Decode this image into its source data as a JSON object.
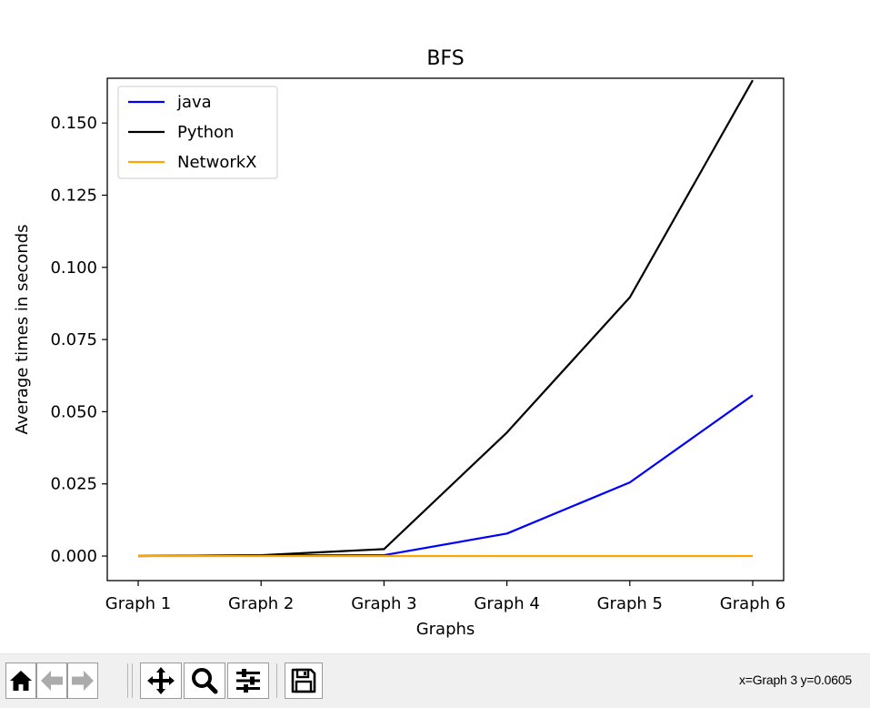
{
  "chart_data": {
    "type": "line",
    "title": "BFS",
    "xlabel": "Graphs",
    "ylabel": "Average times in seconds",
    "categories": [
      "Graph 1",
      "Graph 2",
      "Graph 3",
      "Graph 4",
      "Graph 5",
      "Graph 6"
    ],
    "yticks": [
      "0.000",
      "0.025",
      "0.050",
      "0.075",
      "0.100",
      "0.125",
      "0.150"
    ],
    "ylim": [
      -0.0085,
      0.1655
    ],
    "grid": false,
    "legend_position": "upper-left",
    "series": [
      {
        "name": "java",
        "color": "#0000ff",
        "values": [
          0.0,
          0.0003,
          0.0003,
          0.0078,
          0.0255,
          0.0557
        ]
      },
      {
        "name": "Python",
        "color": "#000000",
        "values": [
          0.0,
          0.0003,
          0.0024,
          0.0428,
          0.0896,
          0.1648
        ]
      },
      {
        "name": "NetworkX",
        "color": "#ffa500",
        "values": [
          0.0,
          0.0,
          0.0,
          0.0,
          0.0,
          0.0
        ]
      }
    ]
  },
  "toolbar": {
    "buttons": [
      {
        "name": "home-button",
        "icon": "home-icon"
      },
      {
        "name": "back-button",
        "icon": "back-arrow-icon"
      },
      {
        "name": "forward-button",
        "icon": "forward-arrow-icon"
      },
      {
        "name": "pan-button",
        "icon": "move-icon"
      },
      {
        "name": "zoom-button",
        "icon": "magnifier-icon"
      },
      {
        "name": "configure-subplots-button",
        "icon": "sliders-icon"
      },
      {
        "name": "save-button",
        "icon": "floppy-disk-icon"
      }
    ],
    "coordinates": "x=Graph 3 y=0.0605"
  }
}
